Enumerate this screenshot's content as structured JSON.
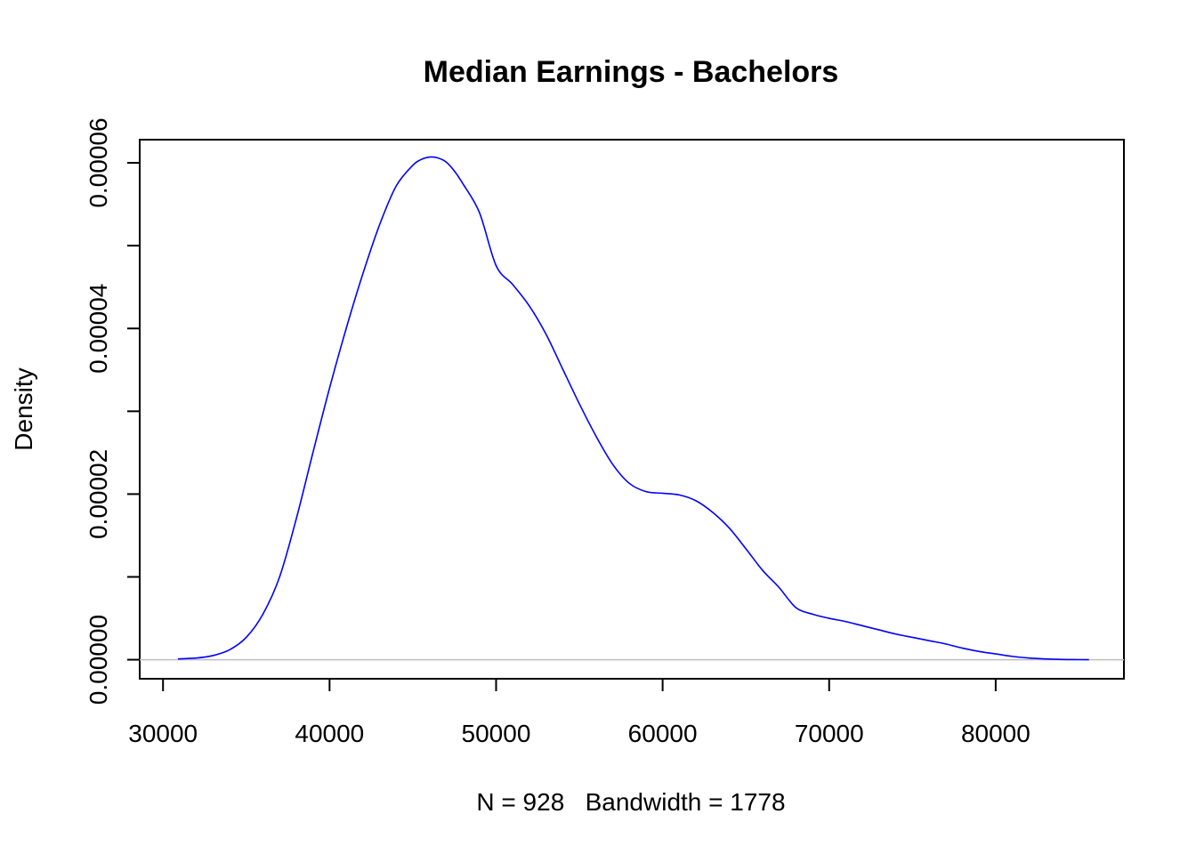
{
  "chart_data": {
    "type": "line",
    "title": "Median Earnings - Bachelors",
    "xlabel": "N = 928   Bandwidth = 1778",
    "ylabel": "Density",
    "xlim": [
      28600,
      87700
    ],
    "ylim": [
      -2.3e-06,
      6.28e-05
    ],
    "x_ticks": [
      30000,
      40000,
      50000,
      60000,
      70000,
      80000
    ],
    "x_tick_labels": [
      "30000",
      "40000",
      "50000",
      "60000",
      "70000",
      "80000"
    ],
    "y_ticks": [
      0,
      1e-05,
      2e-05,
      3e-05,
      4e-05,
      5e-05,
      6e-05
    ],
    "y_tick_labels": [
      "0.00000",
      "",
      "0.00002",
      "",
      "0.00004",
      "",
      "0.00006"
    ],
    "line_color": "#0000ff",
    "baseline_color": "#bebebe",
    "grid": false,
    "series": [
      {
        "x": [
          30900,
          32000,
          33000,
          34000,
          35000,
          36000,
          37000,
          38000,
          39000,
          40000,
          41000,
          42000,
          43000,
          44000,
          45000,
          45500,
          46000,
          46500,
          47000,
          47500,
          48000,
          49000,
          50000,
          51000,
          52000,
          53000,
          54000,
          55000,
          56000,
          57000,
          58000,
          59000,
          60000,
          61000,
          62000,
          63000,
          64000,
          65000,
          66000,
          67000,
          68000,
          69000,
          70000,
          71000,
          72000,
          73000,
          74000,
          75000,
          76000,
          77000,
          78000,
          79000,
          80000,
          81000,
          82000,
          83000,
          84000,
          85000,
          85600
        ],
        "y": [
          1e-07,
          2e-07,
          5e-07,
          1.2e-06,
          2.7e-06,
          5.5e-06,
          1e-05,
          1.7e-05,
          2.5e-05,
          3.28e-05,
          4e-05,
          4.66e-05,
          5.25e-05,
          5.72e-05,
          5.97e-05,
          6.04e-05,
          6.07e-05,
          6.06e-05,
          6.01e-05,
          5.9e-05,
          5.75e-05,
          5.4e-05,
          4.76e-05,
          4.53e-05,
          4.27e-05,
          3.93e-05,
          3.51e-05,
          3.09e-05,
          2.7e-05,
          2.36e-05,
          2.13e-05,
          2.03e-05,
          2.01e-05,
          1.99e-05,
          1.92e-05,
          1.78e-05,
          1.59e-05,
          1.34e-05,
          1.08e-05,
          8.7e-06,
          6.3e-06,
          5.5e-06,
          5e-06,
          4.6e-06,
          4.1e-06,
          3.6e-06,
          3.1e-06,
          2.7e-06,
          2.3e-06,
          1.9e-06,
          1.4e-06,
          1e-06,
          7e-07,
          4e-07,
          2e-07,
          1e-07,
          3e-08,
          1e-08,
          0.0
        ]
      }
    ]
  }
}
